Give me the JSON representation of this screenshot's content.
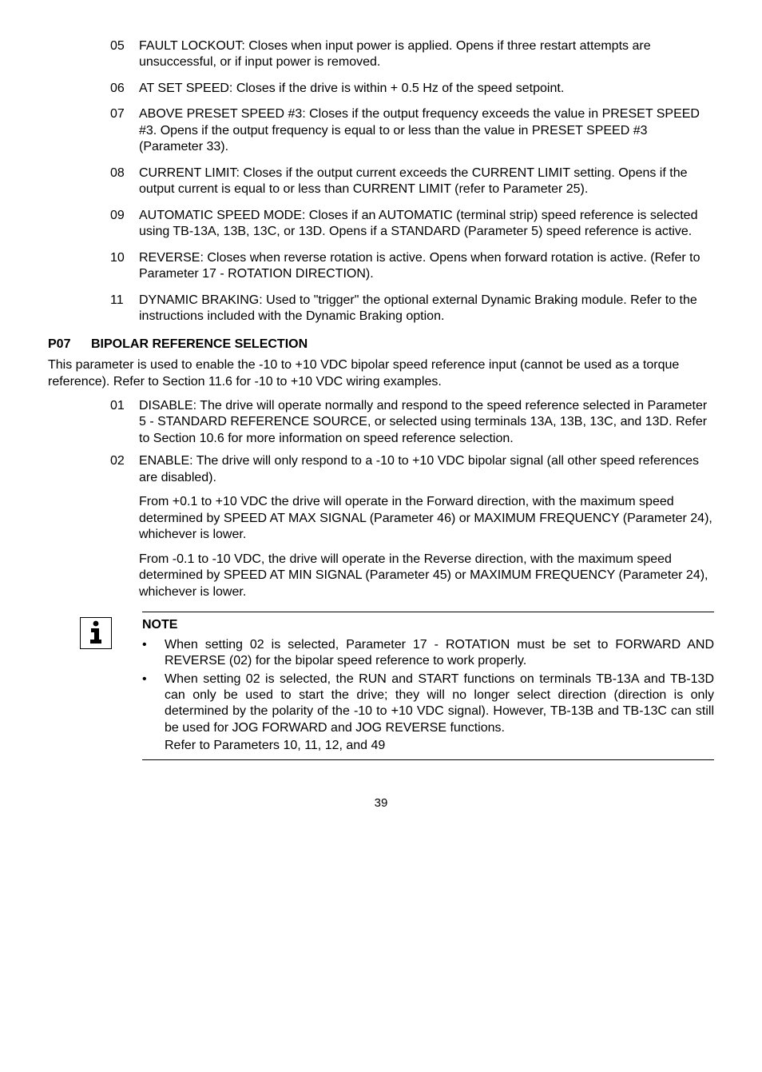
{
  "topItems": [
    {
      "num": "05",
      "text": "FAULT LOCKOUT: Closes when input power is applied. Opens if three restart attempts are unsuccessful, or if input power is removed."
    },
    {
      "num": "06",
      "text": "AT SET SPEED: Closes if the drive is within + 0.5 Hz of the speed setpoint."
    },
    {
      "num": "07",
      "text": "ABOVE PRESET SPEED #3: Closes if the output frequency exceeds the value in PRESET SPEED #3. Opens if the output frequency is equal to or less than the value in PRESET SPEED #3 (Parameter 33)."
    },
    {
      "num": "08",
      "text": "CURRENT LIMIT: Closes if the output current exceeds the CURRENT LIMIT setting. Opens if the output current is equal to or less than CURRENT LIMIT (refer to Parameter 25)."
    },
    {
      "num": "09",
      "text": "AUTOMATIC SPEED MODE: Closes if an AUTOMATIC (terminal strip) speed reference is selected using TB-13A, 13B, 13C, or 13D. Opens if a STANDARD (Parameter 5) speed reference is active."
    },
    {
      "num": "10",
      "text": "REVERSE: Closes when reverse rotation is active. Opens when forward rotation is active. (Refer to Parameter 17 - ROTATION DIRECTION)."
    },
    {
      "num": "11",
      "text": "DYNAMIC BRAKING: Used to \"trigger\" the optional external Dynamic Braking module. Refer to the instructions included with the Dynamic Braking option."
    }
  ],
  "section": {
    "code": "P07",
    "title": "BIPOLAR REFERENCE SELECTION",
    "intro": "This parameter is used to enable the -10 to +10 VDC bipolar speed reference input (cannot be used as a torque reference). Refer to Section 11.6 for -10 to +10 VDC wiring examples."
  },
  "subItems": [
    {
      "num": "01",
      "text": "DISABLE: The drive will operate normally and respond to the speed reference selected in Parameter 5 - STANDARD REFERENCE SOURCE, or selected using terminals 13A, 13B, 13C, and 13D. Refer to Section 10.6 for more information on speed reference selection."
    },
    {
      "num": "02",
      "text": "ENABLE: The drive will only respond to a -10 to +10 VDC bipolar signal (all other speed references are disabled)."
    }
  ],
  "subParas": [
    "From +0.1 to +10 VDC the drive will operate in the Forward direction, with the maximum speed determined by SPEED AT MAX SIGNAL (Parameter 46) or MAXIMUM FREQUENCY (Parameter 24), whichever is lower.",
    "From -0.1 to -10 VDC, the drive will operate in the Reverse direction, with the maximum speed determined by SPEED AT MIN SIGNAL (Parameter 45) or MAXIMUM FREQUENCY (Parameter 24), whichever is lower."
  ],
  "note": {
    "title": "NOTE",
    "bullets": [
      "When setting 02 is selected, Parameter 17 - ROTATION must be set to FORWARD AND REVERSE (02) for the bipolar speed reference to work properly.",
      "When setting 02 is selected, the RUN and START functions on terminals TB-13A and TB-13D can only be used to start the drive; they will no longer select direction (direction is only determined by the polarity of the -10 to +10 VDC signal).  However, TB-13B and TB-13C can still be used for JOG FORWARD and JOG REVERSE functions."
    ],
    "refer": "Refer to Parameters 10, 11, 12, and 49"
  },
  "pageNumber": "39"
}
